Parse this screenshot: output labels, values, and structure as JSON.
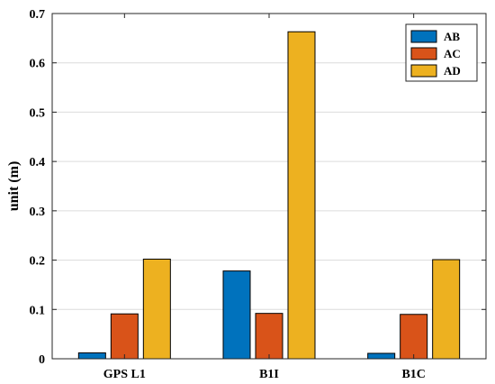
{
  "chart_data": {
    "type": "bar",
    "categories": [
      "GPS L1",
      "B1I",
      "B1C"
    ],
    "series": [
      {
        "name": "AB",
        "values": [
          0.012,
          0.178,
          0.011
        ],
        "color": "#0072BD"
      },
      {
        "name": "AC",
        "values": [
          0.091,
          0.092,
          0.09
        ],
        "color": "#D95319"
      },
      {
        "name": "AD",
        "values": [
          0.202,
          0.663,
          0.201
        ],
        "color": "#EDB120"
      }
    ],
    "title": "",
    "xlabel": "",
    "ylabel": "unit (m)",
    "ylim": [
      0,
      0.7
    ],
    "yticks": [
      0,
      0.1,
      0.2,
      0.3,
      0.4,
      0.5,
      0.6,
      0.7
    ],
    "ytick_labels": [
      "0",
      "0.1",
      "0.2",
      "0.3",
      "0.4",
      "0.5",
      "0.6",
      "0.7"
    ],
    "grid": true,
    "legend_position": "top-right"
  }
}
